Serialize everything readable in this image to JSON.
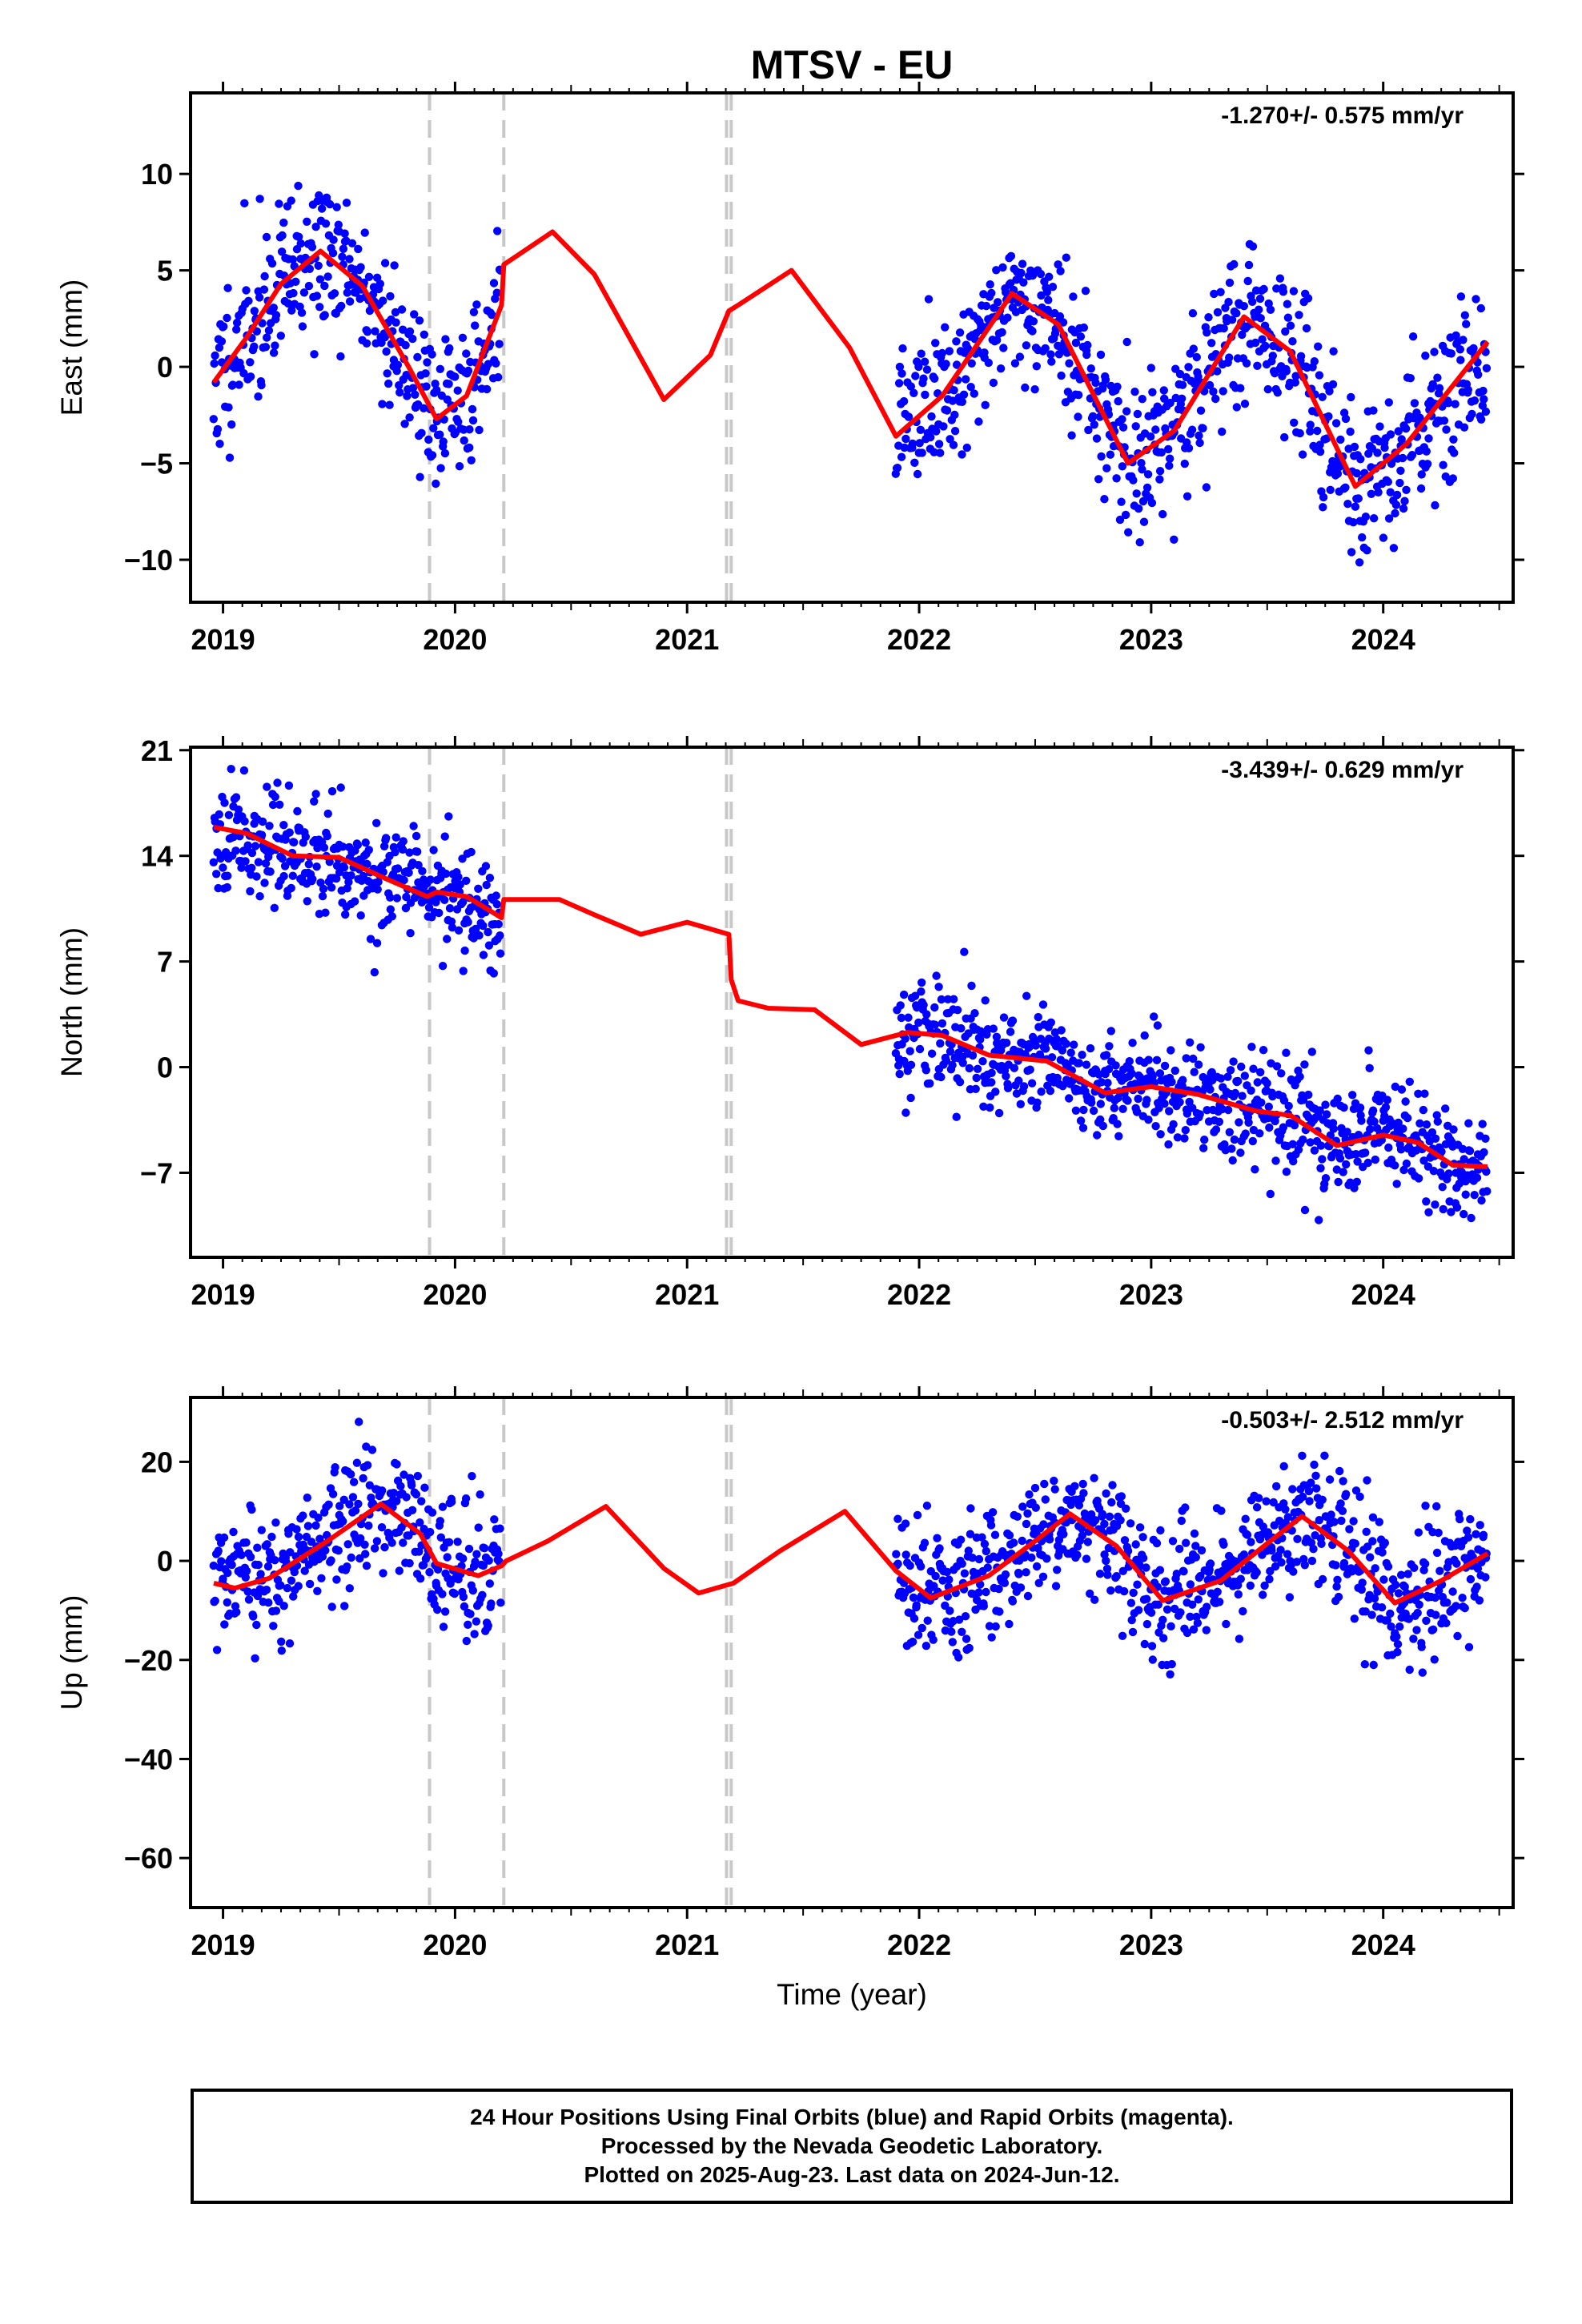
{
  "title": "MTSV - EU",
  "colors": {
    "final_orbits": "#0000ff",
    "model": "#ff0000",
    "offsets": "#c8c8c8",
    "frame": "#000000"
  },
  "xaxis": {
    "label": "Time (year)",
    "ticks": [
      2019,
      2020,
      2021,
      2022,
      2023,
      2024
    ],
    "xlim": [
      2018.86,
      2024.56
    ]
  },
  "offset_lines": [
    2019.89,
    2020.21,
    2021.17,
    2021.19
  ],
  "chart_data": [
    {
      "type": "scatter",
      "component": "east",
      "ylabel": "East (mm)",
      "rate_label": "-1.270+/- 0.575 mm/yr",
      "ylim": [
        -12.2,
        14.2
      ],
      "yticks": [
        10,
        5,
        0,
        -5,
        -10
      ],
      "ytick_labels": [
        "10",
        "5",
        "0",
        "−5",
        "−10"
      ],
      "series": [
        {
          "kind": "points",
          "seed": 11,
          "spread": 2.0,
          "segments": [
            [
              2018.96,
              2020.2
            ],
            [
              2021.9,
              2024.45
            ]
          ]
        },
        {
          "kind": "model_line",
          "x": [
            2018.96,
            2019.1,
            2019.25,
            2019.42,
            2019.6,
            2019.8,
            2019.92,
            2020.05,
            2020.2,
            2020.21,
            2020.42,
            2020.6,
            2020.9,
            2021.1,
            2021.18,
            2021.22,
            2021.45,
            2021.7,
            2021.9,
            2022.1,
            2022.4,
            2022.6,
            2022.9,
            2023.1,
            2023.4,
            2023.6,
            2023.88,
            2024.1,
            2024.45
          ],
          "y": [
            -0.8,
            1.5,
            4.3,
            6.0,
            4.2,
            0.0,
            -2.7,
            -1.5,
            3.2,
            5.3,
            7.0,
            4.8,
            -1.7,
            0.6,
            2.9,
            3.2,
            5.0,
            1.0,
            -3.6,
            -1.5,
            3.8,
            2.2,
            -5.0,
            -3.3,
            2.6,
            0.8,
            -6.2,
            -4.0,
            1.3
          ]
        }
      ]
    },
    {
      "type": "scatter",
      "component": "north",
      "ylabel": "North (mm)",
      "rate_label": "-3.439+/- 0.629 mm/yr",
      "ylim": [
        -12.6,
        21.2
      ],
      "yticks": [
        21,
        14,
        7,
        0,
        -7
      ],
      "ytick_labels": [
        "21",
        "14",
        "7",
        "0",
        "−7"
      ],
      "series": [
        {
          "kind": "points",
          "seed": 23,
          "spread": 1.8,
          "segments": [
            [
              2018.96,
              2020.2
            ],
            [
              2021.9,
              2024.45
            ]
          ]
        },
        {
          "kind": "model_line",
          "x": [
            2018.96,
            2019.1,
            2019.3,
            2019.5,
            2019.7,
            2019.88,
            2019.92,
            2020.05,
            2020.2,
            2020.21,
            2020.45,
            2020.6,
            2020.8,
            2021.0,
            2021.18,
            2021.19,
            2021.22,
            2021.35,
            2021.55,
            2021.75,
            2021.95,
            2022.1,
            2022.3,
            2022.55,
            2022.8,
            2023.0,
            2023.2,
            2023.45,
            2023.6,
            2023.8,
            2024.0,
            2024.15,
            2024.3,
            2024.45
          ],
          "y": [
            15.9,
            15.5,
            14.0,
            13.9,
            12.5,
            11.3,
            11.6,
            11.3,
            9.9,
            11.1,
            11.1,
            10.1,
            8.8,
            9.6,
            8.8,
            5.8,
            4.4,
            3.9,
            3.8,
            1.5,
            2.3,
            2.1,
            0.8,
            0.4,
            -1.7,
            -1.3,
            -1.8,
            -2.9,
            -3.2,
            -5.2,
            -4.5,
            -5.0,
            -6.5,
            -6.6
          ]
        }
      ]
    },
    {
      "type": "scatter",
      "component": "up",
      "ylabel": "Up (mm)",
      "rate_label": "-0.503+/- 2.512 mm/yr",
      "ylim": [
        -70,
        33
      ],
      "yticks": [
        20,
        0,
        -20,
        -40,
        -60
      ],
      "ytick_labels": [
        "20",
        "0",
        "−20",
        "−40",
        "−60"
      ],
      "series": [
        {
          "kind": "points",
          "seed": 37,
          "spread": 6.5,
          "segments": [
            [
              2018.96,
              2020.2
            ],
            [
              2021.9,
              2024.45
            ]
          ]
        },
        {
          "kind": "model_line",
          "x": [
            2018.96,
            2019.05,
            2019.2,
            2019.45,
            2019.68,
            2019.85,
            2019.92,
            2020.1,
            2020.2,
            2020.22,
            2020.4,
            2020.65,
            2020.9,
            2021.05,
            2021.2,
            2021.4,
            2021.68,
            2021.9,
            2022.05,
            2022.3,
            2022.5,
            2022.65,
            2022.85,
            2023.05,
            2023.3,
            2023.5,
            2023.65,
            2023.85,
            2024.05,
            2024.25,
            2024.45
          ],
          "y": [
            -4.5,
            -5.5,
            -3.5,
            4.0,
            11.5,
            5.5,
            -0.5,
            -3.0,
            -1.0,
            0.0,
            4.0,
            11.0,
            -1.5,
            -6.5,
            -4.5,
            2.0,
            10.0,
            -2.0,
            -7.5,
            -3.0,
            4.0,
            9.5,
            3.0,
            -8.0,
            -4.0,
            3.5,
            9.0,
            2.0,
            -8.5,
            -4.0,
            1.5
          ]
        }
      ]
    }
  ],
  "footer": {
    "line1": "24 Hour Positions Using Final Orbits (blue) and Rapid Orbits (magenta).",
    "line2": "Processed by the Nevada Geodetic Laboratory.",
    "line3": "Plotted on 2025-Aug-23. Last data on 2024-Jun-12."
  }
}
